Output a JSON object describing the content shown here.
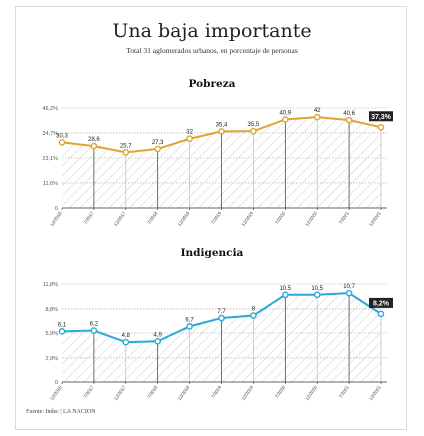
{
  "header": {
    "title": "Una baja importante",
    "subtitle": "Total 31 aglomerados urbanos, en porcentaje de personas"
  },
  "source": "Fuente: Indec | LA NACION",
  "colors": {
    "pobreza_line": "#e0a531",
    "indigencia_line": "#2aa9d6",
    "hatch": "#cfcfcf",
    "label_dark_bg": "#222222"
  },
  "chart_data": [
    {
      "type": "line",
      "title": "Pobreza",
      "x": [
        "12/2016",
        "7/2017",
        "12/2017",
        "7/2018",
        "12/2018",
        "7/2019",
        "12/2019",
        "7/2020",
        "12/2020",
        "7/2021",
        "12/2021"
      ],
      "points_x": [
        "12/2016",
        "7/2017",
        "12/2017",
        "7/2018",
        "12/2018",
        "7/2019",
        "12/2019",
        "7/2020",
        "12/2020",
        "7/2021",
        "12/2021"
      ],
      "values": [
        30.3,
        28.6,
        25.7,
        27.3,
        32,
        35.4,
        35.5,
        40.9,
        42,
        40.6,
        37.3
      ],
      "value_labels": [
        "30,3",
        "28,6",
        "25,7",
        "27,3",
        "32",
        "35,4",
        "35,5",
        "40,9",
        "42",
        "40,6",
        "37,3%"
      ],
      "yticks": [
        0,
        11.6,
        23.1,
        34.7,
        46.2
      ],
      "ytick_labels": [
        "0",
        "11,6%",
        "23,1%",
        "34,7%",
        "46,2%"
      ],
      "ylim": [
        0,
        46.2
      ],
      "highlight_last": true,
      "area_fill": "hatched",
      "grid": true
    },
    {
      "type": "line",
      "title": "Indigencia",
      "x": [
        "12/2016",
        "7/2017",
        "12/2017",
        "7/2018",
        "12/2018",
        "7/2019",
        "12/2019",
        "7/2020",
        "12/2020",
        "7/2021",
        "12/2021"
      ],
      "values": [
        6.1,
        6.2,
        4.8,
        4.9,
        6.7,
        7.7,
        8,
        10.5,
        10.5,
        10.7,
        8.2
      ],
      "value_labels": [
        "6,1",
        "6,2",
        "4,8",
        "4,9",
        "6,7",
        "7,7",
        "8",
        "10,5",
        "10,5",
        "10,7",
        "8,2%"
      ],
      "yticks": [
        0,
        2.9,
        5.9,
        8.8,
        11.8
      ],
      "ytick_labels": [
        "0",
        "2,9%",
        "5,9%",
        "8,8%",
        "11,8%"
      ],
      "ylim": [
        0,
        11.8
      ],
      "highlight_last": true,
      "area_fill": "hatched",
      "grid": true
    }
  ]
}
